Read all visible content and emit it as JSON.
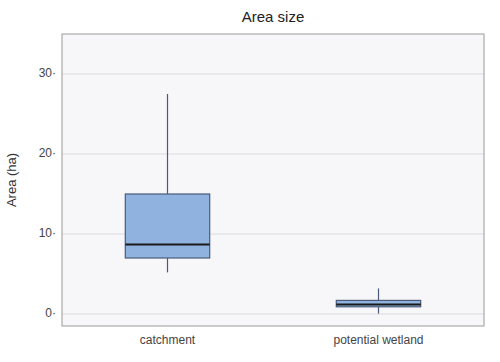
{
  "chart_data": {
    "type": "box",
    "title": "Area size",
    "ylabel": "Area (ha)",
    "categories": [
      "catchment",
      "potential wetland"
    ],
    "values": [
      {
        "q5": 5.2,
        "q25": 7.0,
        "median": 8.7,
        "q75": 15.0,
        "q95": 27.5
      },
      {
        "q5": 0.05,
        "q25": 0.9,
        "median": 1.2,
        "q75": 1.7,
        "q95": 3.2
      }
    ],
    "ylim": [
      -1.5,
      35
    ],
    "yticks": [
      {
        "value": 0,
        "label": "0·"
      },
      {
        "value": 10,
        "label": "10·"
      },
      {
        "value": 20,
        "label": "20·"
      },
      {
        "value": 30,
        "label": "30·"
      }
    ],
    "grid": true
  }
}
